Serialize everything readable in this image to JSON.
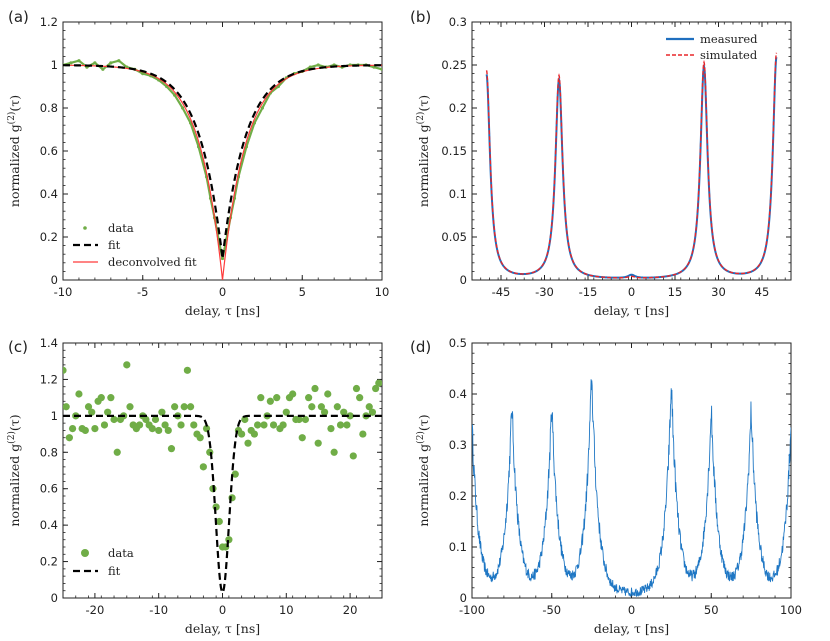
{
  "chart_data": [
    {
      "panel_label": "(a)",
      "type": "line",
      "xlabel": "delay, τ [ns]",
      "ylabel_prefix": "normalized g",
      "ylabel_sup": "(2)",
      "ylabel_suffix": "(τ)",
      "xlim": [
        -10,
        10
      ],
      "ylim": [
        0,
        1.2
      ],
      "xticks": [
        -10,
        -5,
        0,
        5,
        10
      ],
      "yticks": [
        0,
        0.2,
        0.4,
        0.6,
        0.8,
        1,
        1.2
      ],
      "ytick_labels": [
        "0",
        "0.2",
        "0.4",
        "0.6",
        "0.8",
        "1",
        "1.2"
      ],
      "legend_position": "bottom-left",
      "model": {
        "form": "1 - depth * exp(-|tau|/t0)",
        "depth": 0.9,
        "t0": 1.45,
        "deconvolved_depth": 1.0
      },
      "series": [
        {
          "name": "data",
          "style": "points",
          "color": "#70ad47",
          "x": [
            -10,
            -9.5,
            -9,
            -8.5,
            -8,
            -7.5,
            -7,
            -6.5,
            -6,
            -5.5,
            -5,
            -4.5,
            -4,
            -3.5,
            -3,
            -2.5,
            -2,
            -1.5,
            -1,
            -0.75,
            -0.5,
            -0.25,
            0,
            0.25,
            0.5,
            0.75,
            1,
            1.5,
            2,
            2.5,
            3,
            3.5,
            4,
            4.5,
            5,
            5.5,
            6,
            6.5,
            7,
            7.5,
            8,
            8.5,
            9,
            9.5,
            10
          ],
          "y": [
            1.0,
            1.01,
            1.02,
            0.99,
            1.01,
            0.98,
            1.01,
            1.02,
            0.99,
            0.98,
            0.96,
            0.95,
            0.93,
            0.9,
            0.86,
            0.8,
            0.73,
            0.62,
            0.48,
            0.38,
            0.29,
            0.19,
            0.1,
            0.19,
            0.29,
            0.38,
            0.48,
            0.62,
            0.73,
            0.8,
            0.87,
            0.9,
            0.94,
            0.96,
            0.97,
            0.99,
            1.0,
            0.99,
            1.0,
            0.99,
            1.0,
            1.0,
            1.0,
            0.99,
            0.98
          ]
        },
        {
          "name": "fit",
          "style": "dashed",
          "color": "#000000"
        },
        {
          "name": "deconvolved fit",
          "style": "solid",
          "color": "#ff3b3b"
        }
      ]
    },
    {
      "panel_label": "(b)",
      "type": "line",
      "xlabel": "delay, τ [ns]",
      "ylabel_prefix": "normalized g",
      "ylabel_sup": "(2)",
      "ylabel_suffix": "(τ)",
      "xlim": [
        -55,
        55
      ],
      "ylim": [
        0,
        0.3
      ],
      "xticks": [
        -45,
        -30,
        -15,
        0,
        15,
        30,
        45
      ],
      "yticks": [
        0,
        0.05,
        0.1,
        0.15,
        0.2,
        0.25,
        0.3
      ],
      "ytick_labels": [
        "0",
        "0.05",
        "0.1",
        "0.15",
        "0.2",
        "0.25",
        "0.3"
      ],
      "legend_position": "top-right",
      "peaks": [
        {
          "center": -50,
          "height": 0.238
        },
        {
          "center": -25,
          "height": 0.232
        },
        {
          "center": 0,
          "height": 0.004
        },
        {
          "center": 25,
          "height": 0.247
        },
        {
          "center": 50,
          "height": 0.258
        }
      ],
      "peak_width_ns": 1.5,
      "x_range_drawn": [
        -50,
        50
      ],
      "series": [
        {
          "name": "measured",
          "style": "solid",
          "color": "#1f6fbf"
        },
        {
          "name": "simulated",
          "style": "dashed",
          "color": "#e8262a"
        }
      ]
    },
    {
      "panel_label": "(c)",
      "type": "scatter",
      "xlabel": "delay, τ [ns]",
      "ylabel_prefix": "normalized g",
      "ylabel_sup": "(2)",
      "ylabel_suffix": "(τ)",
      "xlim": [
        -25,
        25
      ],
      "ylim": [
        0,
        1.4
      ],
      "xticks": [
        -20,
        -10,
        0,
        10,
        20
      ],
      "yticks": [
        0,
        0.2,
        0.4,
        0.6,
        0.8,
        1,
        1.2,
        1.4
      ],
      "ytick_labels": [
        "0",
        "0.2",
        "0.4",
        "0.6",
        "0.8",
        "1",
        "1.2",
        "1.4"
      ],
      "legend_position": "bottom-left",
      "model": {
        "form": "1 - depth * exp(-(tau/w)^2)",
        "depth": 0.97,
        "w": 1.45
      },
      "series": [
        {
          "name": "data",
          "style": "points",
          "color": "#70ad47",
          "x": [
            -25,
            -24.5,
            -24,
            -23.5,
            -23,
            -22.5,
            -22,
            -21.5,
            -21,
            -20.5,
            -20,
            -19.5,
            -19,
            -18.5,
            -18,
            -17.5,
            -17,
            -16.5,
            -16,
            -15.5,
            -15,
            -14.5,
            -14,
            -13.5,
            -13,
            -12.5,
            -12,
            -11.5,
            -11,
            -10.5,
            -10,
            -9.5,
            -9,
            -8.5,
            -8,
            -7.5,
            -7,
            -6.5,
            -6,
            -5.5,
            -5,
            -4.5,
            -4,
            -3.5,
            -3,
            -2.5,
            -2,
            -1.5,
            -1,
            -0.5,
            0,
            0.5,
            1,
            1.5,
            2,
            2.5,
            3,
            3.5,
            4,
            4.5,
            5,
            5.5,
            6,
            6.5,
            7,
            7.5,
            8,
            8.5,
            9,
            9.5,
            10,
            10.5,
            11,
            11.5,
            12,
            12.5,
            13,
            13.5,
            14,
            14.5,
            15,
            15.5,
            16,
            16.5,
            17,
            17.5,
            18,
            18.5,
            19,
            19.5,
            20,
            20.5,
            21,
            21.5,
            22,
            22.5,
            23,
            23.5,
            24,
            24.5
          ],
          "y": [
            1.25,
            1.05,
            0.88,
            0.93,
            1.0,
            1.12,
            0.93,
            0.92,
            1.05,
            1.02,
            0.93,
            1.08,
            1.1,
            0.95,
            1.02,
            1.1,
            0.98,
            0.8,
            0.98,
            1.0,
            1.28,
            1.05,
            0.95,
            0.93,
            0.95,
            1.0,
            0.98,
            0.95,
            0.93,
            0.98,
            0.92,
            1.02,
            0.95,
            0.92,
            0.82,
            1.05,
            1.0,
            0.95,
            1.05,
            1.25,
            1.05,
            0.95,
            0.9,
            0.88,
            0.72,
            0.93,
            0.8,
            0.6,
            0.5,
            0.42,
            0.28,
            0.28,
            0.32,
            0.55,
            0.68,
            0.92,
            0.9,
            0.98,
            0.85,
            0.92,
            0.9,
            0.95,
            1.1,
            0.95,
            1.0,
            1.08,
            0.95,
            1.1,
            0.93,
            0.95,
            1.02,
            1.1,
            1.12,
            0.98,
            0.98,
            0.88,
            0.98,
            1.1,
            1.05,
            1.15,
            0.85,
            1.05,
            1.02,
            1.12,
            0.93,
            0.8,
            1.05,
            0.95,
            1.02,
            0.95,
            1.0,
            0.78,
            1.15,
            1.1,
            0.9,
            1.0,
            1.05,
            1.02,
            1.15,
            1.18
          ]
        },
        {
          "name": "fit",
          "style": "dashed",
          "color": "#000000"
        }
      ]
    },
    {
      "panel_label": "(d)",
      "type": "line",
      "xlabel": "delay, τ [ns]",
      "ylabel_prefix": "normalized g",
      "ylabel_sup": "(2)",
      "ylabel_suffix": "(τ)",
      "xlim": [
        -100,
        100
      ],
      "ylim": [
        0,
        0.5
      ],
      "xticks": [
        -100,
        -50,
        0,
        50,
        100
      ],
      "yticks": [
        0,
        0.1,
        0.2,
        0.3,
        0.4,
        0.5
      ],
      "ytick_labels": [
        "0",
        "0.1",
        "0.2",
        "0.3",
        "0.4",
        "0.5"
      ],
      "peaks": [
        {
          "center": -100,
          "height": 0.33
        },
        {
          "center": -75,
          "height": 0.37
        },
        {
          "center": -50,
          "height": 0.37
        },
        {
          "center": -25,
          "height": 0.43
        },
        {
          "center": 25,
          "height": 0.41
        },
        {
          "center": 50,
          "height": 0.36
        },
        {
          "center": 75,
          "height": 0.36
        },
        {
          "center": 100,
          "height": 0.33
        }
      ],
      "peak_width_ns": 4,
      "baseline": 0.01,
      "noise_amplitude": 0.035,
      "series": [
        {
          "name": "measured",
          "style": "solid",
          "color": "#1f77c4"
        }
      ]
    }
  ]
}
